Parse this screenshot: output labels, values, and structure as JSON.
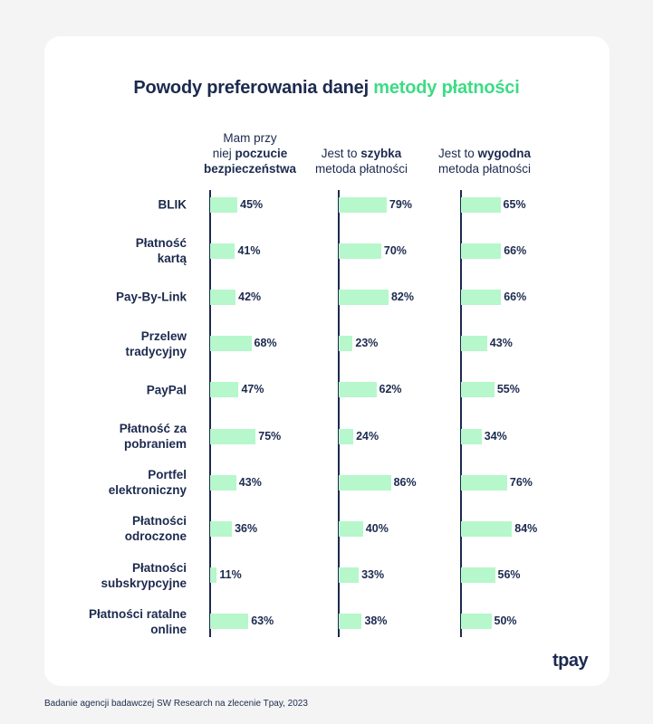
{
  "title_main": "Powody preferowania danej",
  "title_accent": "metody płatności",
  "logo_text": "tpay",
  "footer_text": "Badanie agencji badawczej SW Research na zlecenie Tpay, 2023",
  "colors": {
    "bar": "#b6f7cb",
    "accent": "#3ddc84",
    "text": "#1b2a4e",
    "card": "#ffffff",
    "background": "#f4f4f4"
  },
  "chart_data": {
    "type": "bar",
    "orientation": "horizontal",
    "title": "Powody preferowania danej metody płatności",
    "categories": [
      "BLIK",
      "Płatność kartą",
      "Pay-By-Link",
      "Przelew tradycyjny",
      "PayPal",
      "Płatność za pobraniem",
      "Portfel elektroniczny",
      "Płatności odroczone",
      "Płatności subskrypcyjne",
      "Płatności ratalne online"
    ],
    "category_lines": [
      [
        "BLIK"
      ],
      [
        "Płatność",
        "kartą"
      ],
      [
        "Pay-By-Link"
      ],
      [
        "Przelew",
        "tradycyjny"
      ],
      [
        "PayPal"
      ],
      [
        "Płatność za",
        "pobraniem"
      ],
      [
        "Portfel",
        "elektroniczny"
      ],
      [
        "Płatności",
        "odroczone"
      ],
      [
        "Płatności",
        "subskrypcyjne"
      ],
      [
        "Płatności ratalne",
        "online"
      ]
    ],
    "series": [
      {
        "name": "Mam przy niej poczucie bezpieczeństwa",
        "header_lines": [
          [
            {
              "t": "Mam przy",
              "b": false
            }
          ],
          [
            {
              "t": "niej ",
              "b": false
            },
            {
              "t": "poczucie",
              "b": true
            }
          ],
          [
            {
              "t": "bezpieczeństwa",
              "b": true
            }
          ]
        ],
        "values": [
          45,
          41,
          42,
          68,
          47,
          75,
          43,
          36,
          11,
          63
        ],
        "labels": [
          "45%",
          "41%",
          "42%",
          "68%",
          "47%",
          "75%",
          "43%",
          "36%",
          "11%",
          "63%"
        ]
      },
      {
        "name": "Jest to szybka metoda płatności",
        "header_lines": [
          [
            {
              "t": "Jest to ",
              "b": false
            },
            {
              "t": "szybka",
              "b": true
            }
          ],
          [
            {
              "t": "metoda płatności",
              "b": false
            }
          ]
        ],
        "values": [
          79,
          70,
          82,
          23,
          62,
          24,
          86,
          40,
          33,
          38
        ],
        "labels": [
          "79%",
          "70%",
          "82%",
          "23%",
          "62%",
          "24%",
          "86%",
          "40%",
          "33%",
          "38%"
        ]
      },
      {
        "name": "Jest to wygodna metoda płatności",
        "header_lines": [
          [
            {
              "t": "Jest to ",
              "b": false
            },
            {
              "t": "wygodna",
              "b": true
            }
          ],
          [
            {
              "t": "metoda płatności",
              "b": false
            }
          ]
        ],
        "values": [
          65,
          66,
          66,
          43,
          55,
          34,
          76,
          84,
          56,
          50
        ],
        "labels": [
          "65%",
          "66%",
          "66%",
          "43%",
          "55%",
          "34%",
          "76%",
          "84%",
          "56%",
          "50%"
        ]
      }
    ],
    "xlim": [
      0,
      100
    ],
    "legend": "none",
    "grid": false
  }
}
